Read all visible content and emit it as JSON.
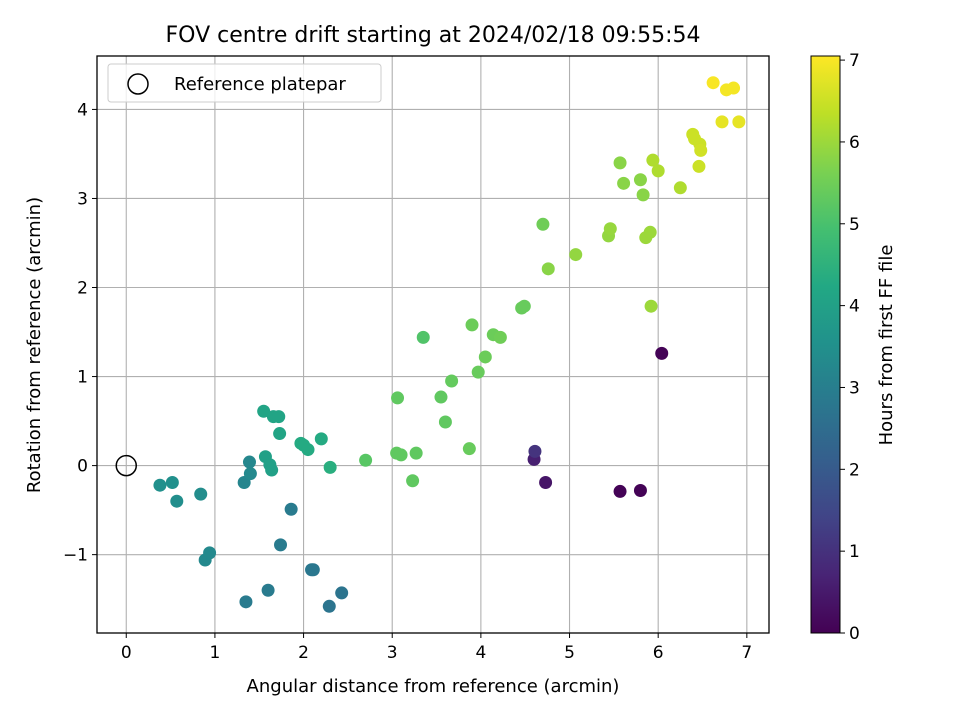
{
  "chart_data": {
    "type": "scatter",
    "title": "FOV centre drift starting at 2024/02/18 09:55:54",
    "xlabel": "Angular distance from reference (arcmin)",
    "ylabel": "Rotation from reference (arcmin)",
    "xlim": [
      -0.33,
      7.25
    ],
    "ylim": [
      -1.88,
      4.6
    ],
    "xticks": [
      0,
      1,
      2,
      3,
      4,
      5,
      6,
      7
    ],
    "yticks": [
      -1,
      0,
      1,
      2,
      3,
      4
    ],
    "grid": true,
    "legend": {
      "placement": "top-left",
      "entries": [
        "Reference platepar"
      ]
    },
    "reference_point": {
      "x": 0,
      "y": 0,
      "label": "Reference platepar"
    },
    "colorbar": {
      "label": "Hours from first FF file",
      "range": [
        0,
        7.05
      ],
      "ticks": [
        0,
        1,
        2,
        3,
        4,
        5,
        6,
        7
      ],
      "colormap": "viridis"
    },
    "series": [
      {
        "points": [
          {
            "x": 0.38,
            "y": -0.22,
            "c": 3.5
          },
          {
            "x": 0.52,
            "y": -0.19,
            "c": 3.5
          },
          {
            "x": 0.57,
            "y": -0.4,
            "c": 3.45
          },
          {
            "x": 0.84,
            "y": -0.32,
            "c": 3.4
          },
          {
            "x": 0.89,
            "y": -1.06,
            "c": 3.3
          },
          {
            "x": 0.94,
            "y": -0.98,
            "c": 3.3
          },
          {
            "x": 1.33,
            "y": -0.19,
            "c": 3.2
          },
          {
            "x": 1.39,
            "y": 0.04,
            "c": 3.25
          },
          {
            "x": 1.4,
            "y": -0.09,
            "c": 3.3
          },
          {
            "x": 1.35,
            "y": -1.53,
            "c": 2.9
          },
          {
            "x": 1.6,
            "y": -1.4,
            "c": 2.9
          },
          {
            "x": 1.55,
            "y": 0.61,
            "c": 4.1
          },
          {
            "x": 1.57,
            "y": 0.1,
            "c": 4.0
          },
          {
            "x": 1.62,
            "y": 0.01,
            "c": 4.0
          },
          {
            "x": 1.64,
            "y": -0.05,
            "c": 4.0
          },
          {
            "x": 1.66,
            "y": 0.55,
            "c": 4.1
          },
          {
            "x": 1.72,
            "y": 0.55,
            "c": 4.1
          },
          {
            "x": 1.73,
            "y": 0.36,
            "c": 4.1
          },
          {
            "x": 1.74,
            "y": -0.89,
            "c": 2.9
          },
          {
            "x": 1.86,
            "y": -0.49,
            "c": 2.9
          },
          {
            "x": 1.97,
            "y": 0.25,
            "c": 4.3
          },
          {
            "x": 2.0,
            "y": 0.23,
            "c": 4.3
          },
          {
            "x": 2.05,
            "y": 0.18,
            "c": 4.3
          },
          {
            "x": 2.09,
            "y": -1.17,
            "c": 2.8
          },
          {
            "x": 2.11,
            "y": -1.17,
            "c": 2.8
          },
          {
            "x": 2.2,
            "y": 0.3,
            "c": 4.3
          },
          {
            "x": 2.29,
            "y": -1.58,
            "c": 2.7
          },
          {
            "x": 2.3,
            "y": -0.02,
            "c": 4.4
          },
          {
            "x": 2.43,
            "y": -1.43,
            "c": 2.7
          },
          {
            "x": 2.7,
            "y": 0.06,
            "c": 5.2
          },
          {
            "x": 3.05,
            "y": 0.14,
            "c": 5.3
          },
          {
            "x": 3.06,
            "y": 0.76,
            "c": 5.3
          },
          {
            "x": 3.1,
            "y": 0.12,
            "c": 5.3
          },
          {
            "x": 3.23,
            "y": -0.17,
            "c": 5.3
          },
          {
            "x": 3.27,
            "y": 0.14,
            "c": 5.3
          },
          {
            "x": 3.35,
            "y": 1.44,
            "c": 5.1
          },
          {
            "x": 3.55,
            "y": 0.77,
            "c": 5.3
          },
          {
            "x": 3.6,
            "y": 0.49,
            "c": 5.3
          },
          {
            "x": 3.67,
            "y": 0.95,
            "c": 5.35
          },
          {
            "x": 3.87,
            "y": 0.19,
            "c": 5.4
          },
          {
            "x": 3.9,
            "y": 1.58,
            "c": 5.45
          },
          {
            "x": 3.97,
            "y": 1.05,
            "c": 5.4
          },
          {
            "x": 4.05,
            "y": 1.22,
            "c": 5.45
          },
          {
            "x": 4.14,
            "y": 1.47,
            "c": 5.45
          },
          {
            "x": 4.22,
            "y": 1.44,
            "c": 5.5
          },
          {
            "x": 4.46,
            "y": 1.77,
            "c": 5.4
          },
          {
            "x": 4.49,
            "y": 1.79,
            "c": 5.4
          },
          {
            "x": 4.6,
            "y": 0.07,
            "c": 0.6
          },
          {
            "x": 4.61,
            "y": 0.16,
            "c": 1.05
          },
          {
            "x": 4.7,
            "y": 2.71,
            "c": 5.5
          },
          {
            "x": 4.73,
            "y": -0.19,
            "c": 0.4
          },
          {
            "x": 4.76,
            "y": 2.21,
            "c": 5.8
          },
          {
            "x": 5.07,
            "y": 2.37,
            "c": 5.9
          },
          {
            "x": 5.44,
            "y": 2.58,
            "c": 5.9
          },
          {
            "x": 5.46,
            "y": 2.66,
            "c": 5.95
          },
          {
            "x": 5.57,
            "y": -0.29,
            "c": 0.05
          },
          {
            "x": 5.57,
            "y": 3.4,
            "c": 5.8
          },
          {
            "x": 5.61,
            "y": 3.17,
            "c": 5.8
          },
          {
            "x": 5.8,
            "y": -0.28,
            "c": 0.05
          },
          {
            "x": 5.8,
            "y": 3.21,
            "c": 5.8
          },
          {
            "x": 5.83,
            "y": 3.04,
            "c": 5.8
          },
          {
            "x": 5.86,
            "y": 2.56,
            "c": 6.0
          },
          {
            "x": 5.91,
            "y": 2.62,
            "c": 6.0
          },
          {
            "x": 5.92,
            "y": 1.79,
            "c": 6.0
          },
          {
            "x": 5.94,
            "y": 3.43,
            "c": 6.2
          },
          {
            "x": 6.0,
            "y": 3.31,
            "c": 6.2
          },
          {
            "x": 6.04,
            "y": 1.26,
            "c": 0.05
          },
          {
            "x": 6.25,
            "y": 3.12,
            "c": 6.2
          },
          {
            "x": 6.39,
            "y": 3.72,
            "c": 6.5
          },
          {
            "x": 6.41,
            "y": 3.67,
            "c": 6.5
          },
          {
            "x": 6.46,
            "y": 3.36,
            "c": 6.5
          },
          {
            "x": 6.47,
            "y": 3.61,
            "c": 6.5
          },
          {
            "x": 6.48,
            "y": 3.54,
            "c": 6.55
          },
          {
            "x": 6.62,
            "y": 4.3,
            "c": 7.0
          },
          {
            "x": 6.72,
            "y": 3.86,
            "c": 6.8
          },
          {
            "x": 6.77,
            "y": 4.22,
            "c": 6.95
          },
          {
            "x": 6.85,
            "y": 4.24,
            "c": 6.95
          },
          {
            "x": 6.91,
            "y": 3.86,
            "c": 6.8
          }
        ]
      }
    ]
  }
}
